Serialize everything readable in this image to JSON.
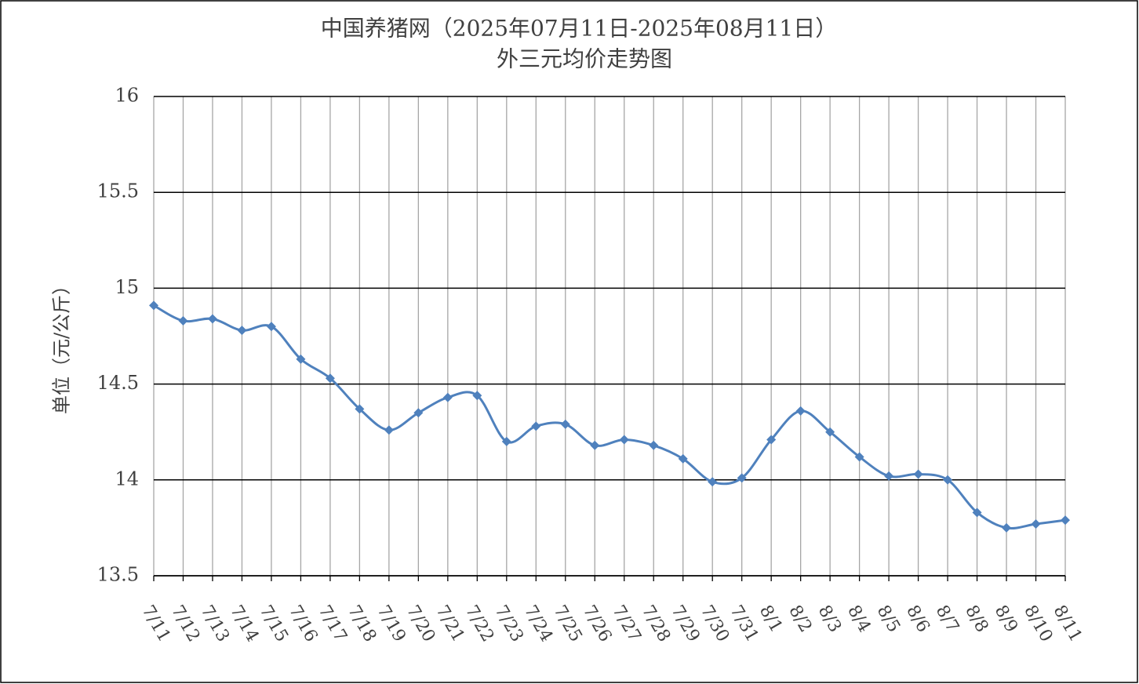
{
  "chart_data": {
    "type": "line",
    "title": "中国养猪网（2025年07月11日-2025年08月11日）",
    "subtitle": "外三元均价走势图",
    "y_label": "单位（元/公斤）",
    "categories": [
      "7/11",
      "7/12",
      "7/13",
      "7/14",
      "7/15",
      "7/16",
      "7/17",
      "7/18",
      "7/19",
      "7/20",
      "7/21",
      "7/22",
      "7/23",
      "7/24",
      "7/25",
      "7/26",
      "7/27",
      "7/28",
      "7/29",
      "7/30",
      "7/31",
      "8/1",
      "8/2",
      "8/3",
      "8/4",
      "8/5",
      "8/6",
      "8/7",
      "8/8",
      "8/9",
      "8/10",
      "8/11"
    ],
    "series": [
      {
        "color": "#4f81bd",
        "values": [
          14.91,
          14.83,
          14.84,
          14.78,
          14.8,
          14.63,
          14.53,
          14.37,
          14.26,
          14.35,
          14.43,
          14.44,
          14.2,
          14.28,
          14.29,
          14.18,
          14.21,
          14.18,
          14.11,
          13.99,
          14.01,
          14.21,
          14.36,
          14.25,
          14.12,
          14.02,
          14.03,
          14.0,
          13.83,
          13.75,
          13.77,
          13.79
        ]
      }
    ],
    "ylim": [
      13.5,
      16
    ],
    "yticks": [
      13.5,
      14,
      14.5,
      15,
      15.5,
      16
    ],
    "grid": true,
    "smooth": true
  }
}
